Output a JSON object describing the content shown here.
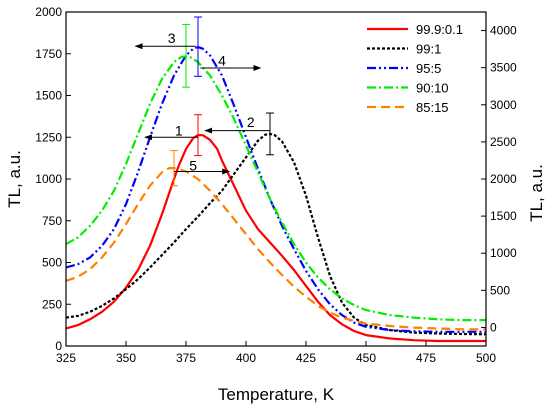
{
  "chart_data": {
    "type": "line",
    "title": "",
    "xlabel": "Temperature, K",
    "ylabel": "TL, a.u.",
    "y2label": "TL, a.u.",
    "xlim": [
      325,
      500
    ],
    "ylim": [
      0,
      2000
    ],
    "y2lim": [
      -250,
      4250
    ],
    "x_ticks": [
      325,
      350,
      375,
      400,
      425,
      450,
      475,
      500
    ],
    "y_ticks": [
      0,
      250,
      500,
      750,
      1000,
      1250,
      1500,
      1750,
      2000
    ],
    "y2_ticks": [
      0,
      500,
      1000,
      1500,
      2000,
      2500,
      3000,
      3500,
      4000
    ],
    "grid": false,
    "legend_position": "top-right",
    "series": [
      {
        "name": "99.9:0.1",
        "color": "#ff0000",
        "dash": "solid",
        "axis": "left",
        "x": [
          325,
          330,
          335,
          340,
          345,
          350,
          355,
          360,
          365,
          370,
          372,
          375,
          378,
          380,
          382,
          385,
          388,
          390,
          395,
          400,
          405,
          410,
          415,
          420,
          425,
          430,
          435,
          440,
          445,
          450,
          460,
          470,
          480,
          490,
          500
        ],
        "y": [
          105,
          125,
          160,
          205,
          265,
          350,
          455,
          600,
          790,
          1000,
          1080,
          1180,
          1245,
          1262,
          1262,
          1235,
          1180,
          1110,
          960,
          810,
          700,
          620,
          540,
          455,
          360,
          265,
          185,
          130,
          90,
          65,
          45,
          35,
          30,
          30,
          30
        ]
      },
      {
        "name": "99:1",
        "color": "#000000",
        "dash": "dash",
        "axis": "left",
        "x": [
          325,
          330,
          335,
          340,
          345,
          350,
          355,
          360,
          365,
          370,
          375,
          380,
          385,
          390,
          395,
          400,
          405,
          408,
          410,
          412,
          415,
          420,
          425,
          430,
          435,
          440,
          445,
          450,
          460,
          470,
          480,
          490,
          500
        ],
        "y": [
          170,
          180,
          205,
          240,
          285,
          340,
          400,
          470,
          545,
          620,
          700,
          775,
          855,
          930,
          1030,
          1130,
          1230,
          1265,
          1270,
          1262,
          1225,
          1100,
          900,
          650,
          420,
          260,
          170,
          125,
          95,
          80,
          75,
          72,
          70
        ]
      },
      {
        "name": "95:5",
        "color": "#0000ff",
        "dash": "dashdotdot",
        "axis": "left",
        "x": [
          325,
          330,
          335,
          340,
          345,
          350,
          355,
          360,
          365,
          370,
          375,
          378,
          380,
          382,
          385,
          390,
          395,
          400,
          405,
          410,
          415,
          420,
          425,
          430,
          435,
          440,
          445,
          450,
          460,
          470,
          480,
          490,
          500
        ],
        "y": [
          470,
          490,
          530,
          600,
          700,
          850,
          1040,
          1250,
          1450,
          1620,
          1740,
          1780,
          1790,
          1780,
          1740,
          1620,
          1440,
          1250,
          1060,
          880,
          720,
          580,
          450,
          340,
          250,
          185,
          140,
          115,
          95,
          88,
          85,
          85,
          85
        ]
      },
      {
        "name": "90:10",
        "color": "#00ee00",
        "dash": "dashdot",
        "axis": "left",
        "x": [
          325,
          330,
          335,
          340,
          345,
          350,
          355,
          360,
          365,
          370,
          373,
          375,
          377,
          380,
          385,
          390,
          395,
          400,
          405,
          410,
          415,
          420,
          425,
          430,
          435,
          440,
          445,
          450,
          460,
          470,
          480,
          490,
          500
        ],
        "y": [
          610,
          650,
          720,
          810,
          930,
          1090,
          1270,
          1450,
          1600,
          1700,
          1730,
          1735,
          1728,
          1700,
          1620,
          1500,
          1360,
          1200,
          1040,
          880,
          740,
          610,
          500,
          410,
          340,
          285,
          245,
          215,
          185,
          170,
          160,
          155,
          155
        ]
      },
      {
        "name": "85:15",
        "color": "#ff8000",
        "dash": "longdash",
        "axis": "left",
        "x": [
          325,
          330,
          335,
          340,
          345,
          350,
          355,
          360,
          365,
          368,
          370,
          372,
          375,
          380,
          385,
          390,
          395,
          400,
          405,
          410,
          415,
          420,
          425,
          430,
          435,
          440,
          445,
          450,
          460,
          470,
          480,
          490,
          500
        ],
        "y": [
          390,
          415,
          460,
          530,
          620,
          730,
          850,
          960,
          1040,
          1065,
          1065,
          1060,
          1045,
          1000,
          930,
          850,
          760,
          670,
          580,
          500,
          425,
          355,
          295,
          240,
          200,
          170,
          150,
          135,
          120,
          110,
          105,
          100,
          100
        ]
      }
    ],
    "error_bars": [
      {
        "color": "#ff0000",
        "x": 380,
        "y": 1262,
        "low": 1140,
        "high": 1385
      },
      {
        "color": "#000000",
        "x": 410,
        "y": 1270,
        "low": 1145,
        "high": 1395
      },
      {
        "color": "#0000ff",
        "x": 380,
        "y": 1790,
        "low": 1615,
        "high": 1970
      },
      {
        "color": "#00ee00",
        "x": 375,
        "y": 1735,
        "low": 1550,
        "high": 1925
      },
      {
        "color": "#ff8000",
        "x": 370,
        "y": 1065,
        "low": 960,
        "high": 1170
      }
    ],
    "annotations": [
      {
        "label": "1",
        "x": 380,
        "y": 1250,
        "dir": "left",
        "to": 358,
        "lx": 372,
        "ly": 1290
      },
      {
        "label": "2",
        "x": 410,
        "y": 1290,
        "dir": "left",
        "to": 383,
        "lx": 402,
        "ly": 1340
      },
      {
        "label": "3",
        "x": 379,
        "y": 1795,
        "dir": "left",
        "to": 354,
        "lx": 369,
        "ly": 1845
      },
      {
        "label": "4",
        "x": 381,
        "y": 1665,
        "dir": "right",
        "to": 406,
        "lx": 390,
        "ly": 1710
      },
      {
        "label": "5",
        "x": 370,
        "y": 1045,
        "dir": "right",
        "to": 393,
        "lx": 378,
        "ly": 1080
      }
    ]
  }
}
